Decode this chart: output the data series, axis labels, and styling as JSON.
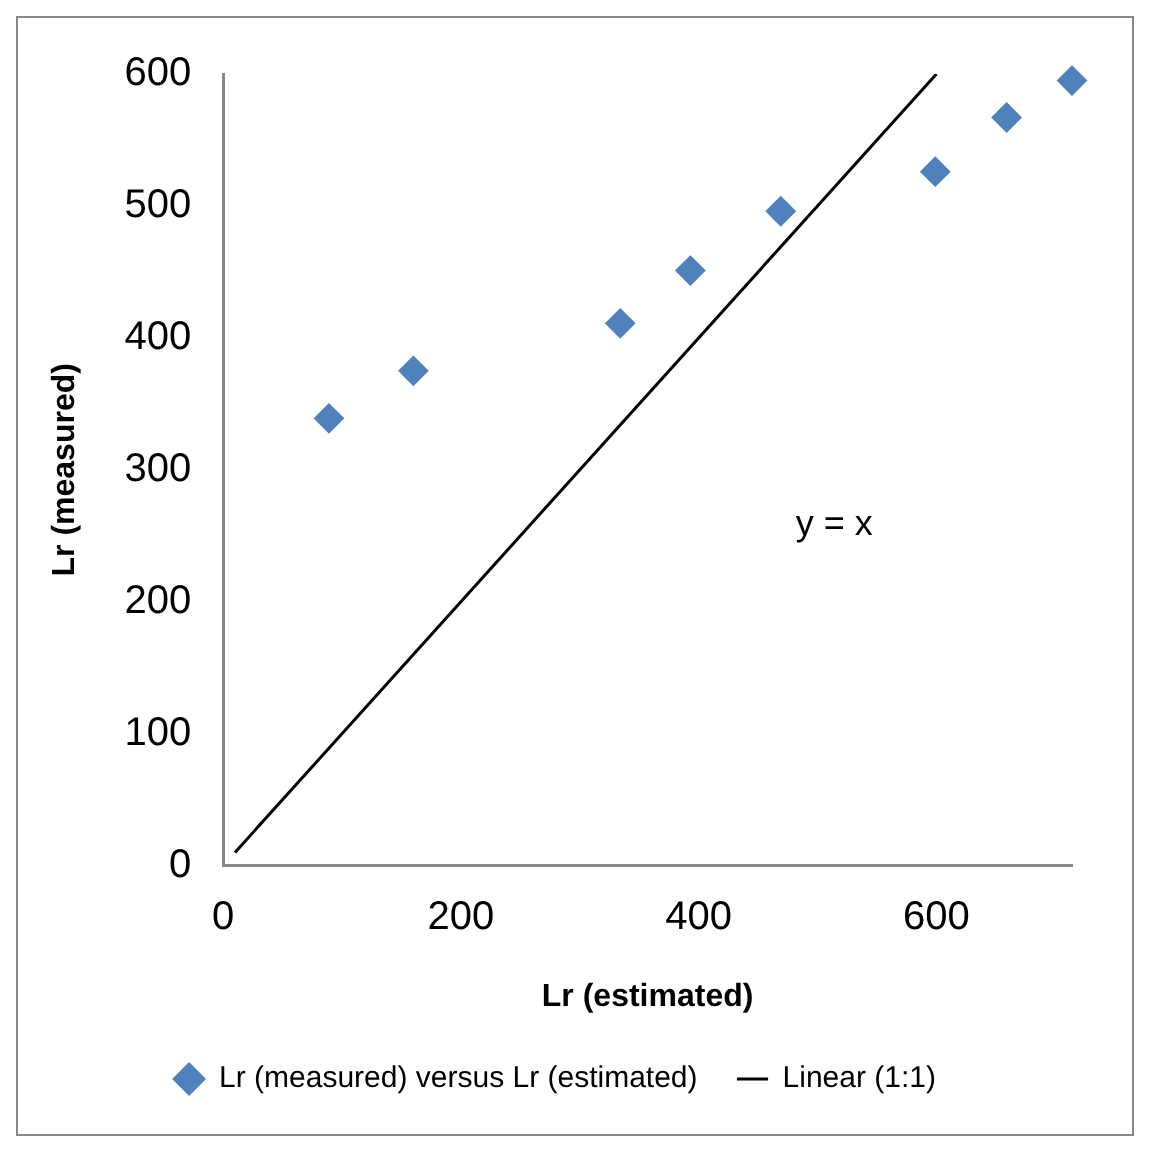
{
  "chart_data": {
    "type": "scatter",
    "xlabel": "Lr (estimated)",
    "ylabel": "Lr (measured)",
    "xlim": [
      0,
      714
    ],
    "xticks": [
      0,
      200,
      400,
      600
    ],
    "ylim": [
      0,
      600
    ],
    "yticks": [
      0,
      100,
      200,
      300,
      400,
      500,
      600
    ],
    "grid": false,
    "legend": "bottom",
    "series": [
      {
        "name": "Lr (measured) versus Lr (estimated)",
        "type": "scatter",
        "marker": "diamond",
        "color": "#4f81bd",
        "x": [
          89,
          160,
          334,
          393,
          469,
          599,
          659,
          714
        ],
        "values": [
          339,
          375,
          411,
          451,
          496,
          526,
          567,
          595
        ]
      },
      {
        "name": "Linear (1:1)",
        "type": "line",
        "color": "#000000",
        "x": [
          10,
          600
        ],
        "values": [
          10,
          600
        ]
      }
    ],
    "annotations": [
      "y = x"
    ]
  }
}
